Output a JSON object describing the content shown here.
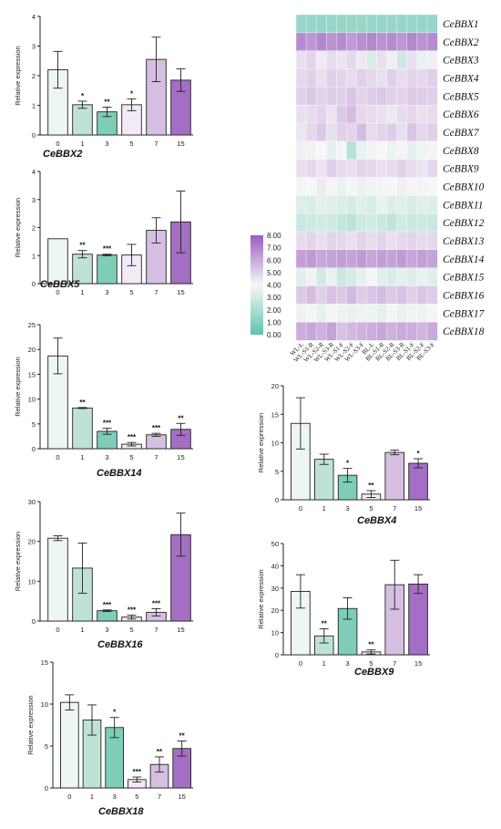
{
  "palette": [
    "#eef6f3",
    "#bfe2d7",
    "#7dcdb9",
    "#f3eaf6",
    "#d6bfe2",
    "#a36ec3"
  ],
  "bar_charts": [
    {
      "title": "CeBBX2",
      "ylabel": "Relative expression",
      "ylim": [
        0,
        4
      ],
      "yticks": [
        0,
        1,
        2,
        3,
        4
      ],
      "categories": [
        "0",
        "1",
        "3",
        "5",
        "7",
        "15"
      ],
      "values": [
        2.2,
        1.02,
        0.78,
        1.02,
        2.55,
        1.85
      ],
      "errors": [
        0.62,
        0.12,
        0.16,
        0.2,
        0.75,
        0.38
      ],
      "sig": [
        "",
        "*",
        "**",
        "*",
        "",
        ""
      ]
    },
    {
      "title": "CeBBX5",
      "ylabel": "Relative expression",
      "ylim": [
        0,
        4
      ],
      "yticks": [
        0,
        1,
        2,
        3,
        4
      ],
      "categories": [
        "0",
        "1",
        "3",
        "5",
        "7",
        "15"
      ],
      "values": [
        1.6,
        1.05,
        1.02,
        1.02,
        1.9,
        2.2
      ],
      "errors": [
        0.0,
        0.13,
        0.03,
        0.38,
        0.45,
        1.1
      ],
      "sig": [
        "",
        "**",
        "***",
        "",
        "",
        ""
      ]
    },
    {
      "title": "CeBBX14",
      "ylabel": "Relative expression",
      "ylim": [
        0,
        25
      ],
      "yticks": [
        0,
        5,
        10,
        15,
        20,
        25
      ],
      "categories": [
        "0",
        "1",
        "3",
        "5",
        "7",
        "15"
      ],
      "values": [
        18.7,
        8.2,
        3.5,
        0.9,
        2.8,
        3.9
      ],
      "errors": [
        3.6,
        0.1,
        0.6,
        0.35,
        0.3,
        1.2
      ],
      "sig": [
        "",
        "**",
        "***",
        "***",
        "***",
        "**"
      ]
    },
    {
      "title": "CeBBX16",
      "ylabel": "Relative expression",
      "ylim": [
        0,
        30
      ],
      "yticks": [
        0,
        10,
        20,
        30
      ],
      "categories": [
        "0",
        "1",
        "3",
        "5",
        "7",
        "15"
      ],
      "values": [
        20.8,
        13.3,
        2.6,
        1.0,
        2.2,
        21.7
      ],
      "errors": [
        0.6,
        6.3,
        0.2,
        0.5,
        0.9,
        5.4
      ],
      "sig": [
        "",
        "",
        "***",
        "***",
        "***",
        ""
      ]
    },
    {
      "title": "CeBBX18",
      "ylabel": "Relative expression",
      "ylim": [
        0,
        15
      ],
      "yticks": [
        0,
        5,
        10,
        15
      ],
      "categories": [
        "0",
        "1",
        "3",
        "5",
        "7",
        "15"
      ],
      "values": [
        10.2,
        8.1,
        7.2,
        1.0,
        2.8,
        4.7
      ],
      "errors": [
        0.9,
        1.8,
        1.2,
        0.3,
        0.9,
        0.9
      ],
      "sig": [
        "",
        "",
        "*",
        "***",
        "**",
        "**"
      ]
    },
    {
      "title": "CeBBX4",
      "ylabel": "Relative expression",
      "ylim": [
        0,
        20
      ],
      "yticks": [
        0,
        5,
        10,
        15,
        20
      ],
      "categories": [
        "0",
        "1",
        "3",
        "5",
        "7",
        "15"
      ],
      "values": [
        13.4,
        7.1,
        4.3,
        1.0,
        8.3,
        6.4
      ],
      "errors": [
        4.5,
        0.9,
        1.2,
        0.6,
        0.4,
        0.8
      ],
      "sig": [
        "",
        "",
        "*",
        "**",
        "",
        "*"
      ]
    },
    {
      "title": "CeBBX9",
      "ylabel": "Relative expression",
      "ylim": [
        0,
        50
      ],
      "yticks": [
        0,
        10,
        20,
        30,
        40,
        50
      ],
      "categories": [
        "0",
        "1",
        "3",
        "5",
        "7",
        "15"
      ],
      "values": [
        28.5,
        8.5,
        20.8,
        1.3,
        31.5,
        31.8
      ],
      "errors": [
        7.5,
        3.2,
        4.8,
        0.9,
        11.0,
        4.2
      ],
      "sig": [
        "",
        "**",
        "",
        "**",
        "",
        ""
      ]
    }
  ],
  "heatmap": {
    "rows": [
      "CeBBX1",
      "CeBBX2",
      "CeBBX3",
      "CeBBX4",
      "CeBBX5",
      "CeBBX6",
      "CeBBX7",
      "CeBBX8",
      "CeBBX9",
      "CeBBX10",
      "CeBBX11",
      "CeBBX12",
      "CeBBX13",
      "CeBBX14",
      "CeBBX15",
      "CeBBX16",
      "CeBBX17",
      "CeBBX18"
    ],
    "cols": [
      "WL-L",
      "WL-S1-R",
      "WL-S2-R",
      "WL-S3-R",
      "WL-S1-F",
      "WL-S2-F",
      "WL-S3-F",
      "BL-L",
      "BL-S1-R",
      "BL-S2-R",
      "BL-S3-R",
      "BL-S1-F",
      "BL-S2-F",
      "BL-S3-F"
    ],
    "colorbar": {
      "min": 0,
      "max": 8,
      "ticks": [
        "8.00",
        "7.00",
        "6.00",
        "5.00",
        "4.00",
        "3.00",
        "2.00",
        "1.00",
        "0.00"
      ],
      "low_color": "#5ec4ad",
      "mid_color": "#f7f7f7",
      "high_color": "#9c5cc0"
    },
    "values": [
      [
        1.5,
        1.5,
        1.5,
        1.5,
        1.5,
        1.5,
        1.5,
        1.5,
        1.5,
        1.5,
        1.5,
        1.5,
        1.5,
        1.5
      ],
      [
        6.8,
        6.5,
        6.9,
        6.6,
        6.8,
        6.4,
        6.7,
        6.9,
        6.6,
        6.8,
        6.5,
        6.9,
        6.6,
        6.8
      ],
      [
        4.6,
        4.9,
        4.3,
        4.7,
        4.5,
        4.8,
        4.4,
        3.2,
        4.6,
        4.2,
        2.9,
        4.6,
        3.6,
        4.2
      ],
      [
        4.8,
        5.0,
        4.6,
        5.0,
        4.9,
        4.7,
        5.0,
        4.8,
        4.6,
        5.0,
        4.7,
        4.9,
        4.8,
        5.0
      ],
      [
        5.0,
        5.2,
        4.9,
        5.1,
        5.0,
        5.3,
        4.9,
        5.1,
        5.2,
        5.0,
        4.9,
        5.2,
        5.1,
        5.0
      ],
      [
        4.6,
        4.7,
        4.9,
        4.5,
        5.2,
        5.5,
        4.8,
        4.7,
        4.6,
        4.4,
        4.7,
        4.8,
        4.6,
        4.7
      ],
      [
        4.5,
        4.8,
        5.2,
        4.6,
        5.0,
        4.9,
        5.5,
        4.7,
        4.9,
        5.1,
        4.6,
        5.3,
        4.8,
        5.0
      ],
      [
        4.2,
        3.8,
        4.0,
        3.5,
        3.9,
        2.3,
        3.6,
        3.8,
        4.0,
        3.7,
        4.1,
        3.5,
        3.8,
        3.9
      ],
      [
        4.6,
        4.8,
        4.5,
        5.0,
        4.7,
        4.6,
        4.9,
        4.8,
        4.6,
        4.7,
        5.0,
        4.7,
        4.5,
        4.8
      ],
      [
        3.9,
        4.0,
        4.3,
        4.1,
        3.6,
        3.9,
        4.2,
        3.8,
        4.1,
        4.0,
        4.2,
        3.9,
        4.1,
        4.0
      ],
      [
        3.3,
        3.2,
        3.5,
        3.4,
        3.3,
        3.1,
        3.4,
        3.2,
        3.6,
        3.3,
        3.4,
        3.2,
        3.4,
        3.3
      ],
      [
        2.8,
        2.9,
        3.0,
        2.9,
        2.7,
        2.4,
        2.9,
        3.0,
        2.8,
        2.5,
        3.0,
        2.8,
        2.9,
        2.8
      ],
      [
        4.7,
        4.9,
        4.6,
        4.9,
        4.8,
        4.6,
        4.9,
        4.7,
        4.9,
        4.6,
        4.8,
        4.9,
        4.7,
        4.8
      ],
      [
        6.3,
        6.4,
        6.1,
        6.2,
        6.3,
        6.2,
        6.4,
        6.1,
        6.3,
        6.2,
        6.4,
        6.1,
        6.3,
        6.2
      ],
      [
        3.4,
        3.8,
        3.0,
        3.6,
        2.8,
        3.1,
        3.5,
        3.9,
        3.4,
        3.2,
        3.5,
        3.3,
        3.6,
        3.4
      ],
      [
        5.2,
        5.5,
        5.0,
        5.4,
        5.2,
        5.6,
        5.1,
        5.3,
        5.5,
        5.2,
        5.4,
        5.0,
        5.3,
        5.1
      ],
      [
        3.7,
        3.9,
        3.5,
        3.9,
        3.7,
        3.6,
        3.8,
        3.7,
        3.5,
        3.9,
        3.6,
        3.8,
        3.7,
        3.9
      ],
      [
        5.9,
        6.1,
        5.8,
        6.2,
        5.4,
        5.6,
        5.8,
        5.9,
        6.1,
        5.8,
        6.0,
        5.9,
        5.7,
        6.0
      ]
    ]
  }
}
